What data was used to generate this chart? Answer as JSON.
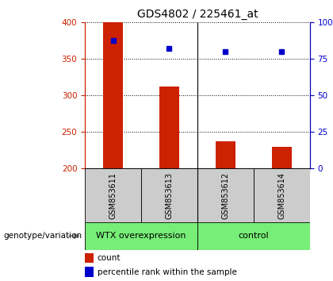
{
  "title": "GDS4802 / 225461_at",
  "samples": [
    "GSM853611",
    "GSM853613",
    "GSM853612",
    "GSM853614"
  ],
  "bar_values": [
    400,
    312,
    237,
    230
  ],
  "bar_bottom": 200,
  "percentile_values": [
    375,
    365,
    360,
    360
  ],
  "ylim": [
    200,
    400
  ],
  "yticks_left": [
    200,
    250,
    300,
    350,
    400
  ],
  "yticks_right": [
    0,
    25,
    50,
    75,
    100
  ],
  "bar_color": "#cc2200",
  "dot_color": "#0000cc",
  "group_green": "#77ee77",
  "group_gray": "#cccccc",
  "groups": [
    {
      "label": "WTX overexpression",
      "start": 0,
      "end": 1
    },
    {
      "label": "control",
      "start": 2,
      "end": 3
    }
  ],
  "genotype_label": "genotype/variation",
  "legend_count_label": "count",
  "legend_pct_label": "percentile rank within the sample",
  "title_fontsize": 10,
  "tick_fontsize": 7.5,
  "sample_fontsize": 7,
  "group_fontsize": 8,
  "left_tick_color": "#cc2200",
  "right_tick_color": "#0000cc",
  "bar_width": 0.35
}
